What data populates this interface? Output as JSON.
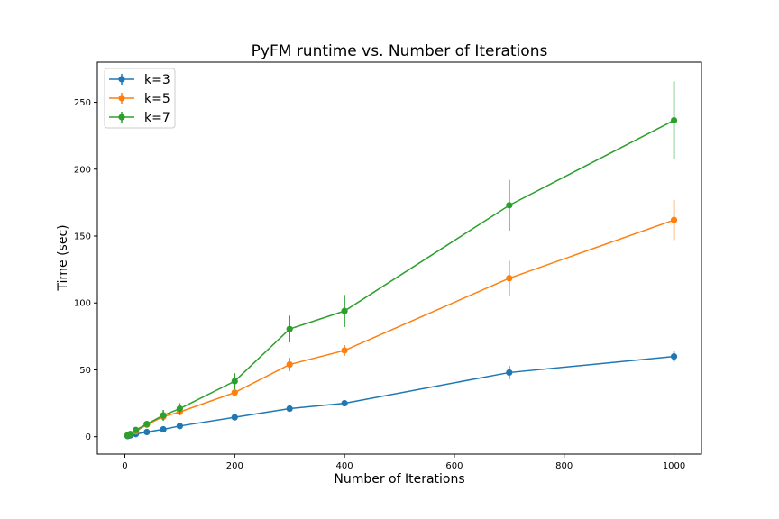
{
  "chart_data": {
    "type": "line",
    "title": "PyFM runtime vs. Number of Iterations",
    "xlabel": "Number of Iterations",
    "ylabel": "Time (sec)",
    "xlim": [
      -50,
      1050
    ],
    "ylim": [
      -13,
      280
    ],
    "xticks": [
      0,
      200,
      400,
      600,
      800,
      1000
    ],
    "yticks": [
      0,
      50,
      100,
      150,
      200,
      250
    ],
    "grid": false,
    "legend_position": "upper left",
    "x": [
      5,
      10,
      20,
      40,
      70,
      100,
      200,
      300,
      400,
      700,
      1000
    ],
    "series": [
      {
        "name": "k=3",
        "color": "#1f77b4",
        "values": [
          0.5,
          1.0,
          2.0,
          3.5,
          5.5,
          8.0,
          14.5,
          21.0,
          25.0,
          48.0,
          60.0
        ],
        "errors": [
          0.5,
          0.6,
          0.8,
          1.0,
          1.0,
          1.0,
          1.0,
          1.0,
          1.0,
          5.0,
          4.0
        ]
      },
      {
        "name": "k=5",
        "color": "#ff7f0e",
        "values": [
          1.0,
          2.0,
          4.0,
          9.0,
          15.0,
          18.5,
          33.0,
          54.0,
          64.5,
          118.5,
          162.0
        ],
        "errors": [
          0.5,
          1.0,
          1.5,
          2.0,
          2.5,
          2.5,
          3.0,
          5.0,
          4.0,
          13.0,
          15.0
        ]
      },
      {
        "name": "k=7",
        "color": "#2ca02c",
        "values": [
          1.0,
          2.0,
          5.0,
          9.5,
          16.0,
          21.0,
          41.5,
          80.5,
          94.0,
          173.0,
          236.5
        ],
        "errors": [
          0.5,
          1.0,
          2.0,
          2.0,
          4.0,
          4.0,
          6.0,
          10.0,
          12.0,
          19.0,
          29.0
        ]
      }
    ]
  }
}
